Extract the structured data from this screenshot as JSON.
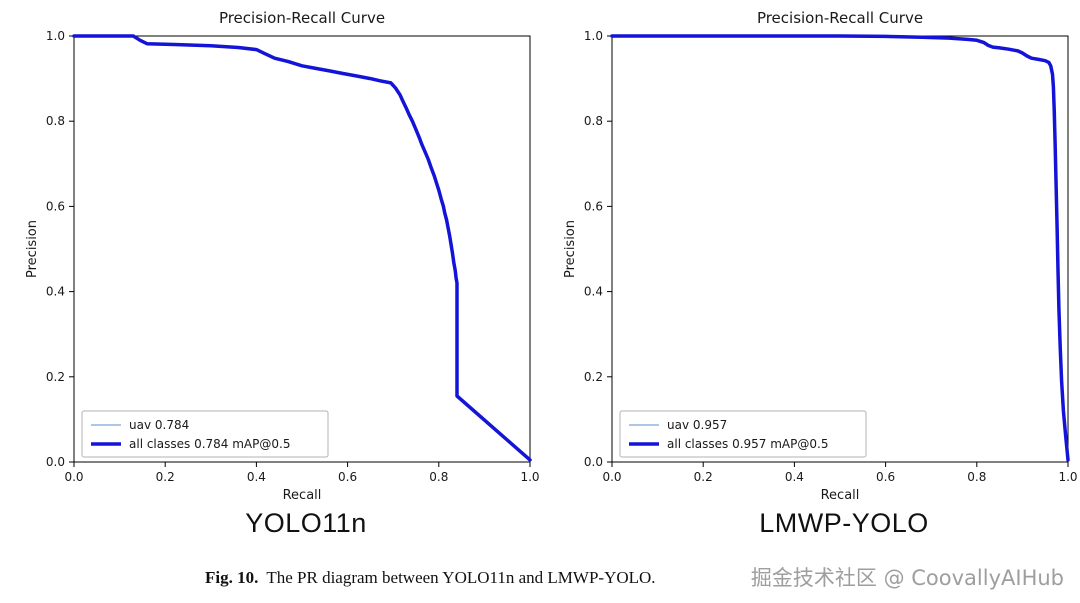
{
  "chart_data": [
    {
      "type": "line",
      "title": "Precision-Recall Curve",
      "xlabel": "Recall",
      "ylabel": "Precision",
      "model_label": "YOLO11n",
      "xlim": [
        0,
        1.0
      ],
      "ylim": [
        0,
        1.0
      ],
      "xticks": [
        "0.0",
        "0.2",
        "0.4",
        "0.6",
        "0.8",
        "1.0"
      ],
      "yticks": [
        "0.0",
        "0.2",
        "0.4",
        "0.6",
        "0.8",
        "1.0"
      ],
      "grid": false,
      "legend_position": "lower left",
      "series": [
        {
          "name": "uav 0.784",
          "color": "#7da3d8",
          "width": 1.3
        },
        {
          "name": "all classes 0.784 mAP@0.5",
          "color": "#1414d8",
          "width": 3.5
        }
      ],
      "points": [
        [
          0,
          1.0
        ],
        [
          0.13,
          1.0
        ],
        [
          0.145,
          0.99
        ],
        [
          0.16,
          0.982
        ],
        [
          0.22,
          0.98
        ],
        [
          0.3,
          0.977
        ],
        [
          0.36,
          0.973
        ],
        [
          0.4,
          0.968
        ],
        [
          0.42,
          0.958
        ],
        [
          0.44,
          0.948
        ],
        [
          0.47,
          0.94
        ],
        [
          0.5,
          0.93
        ],
        [
          0.53,
          0.924
        ],
        [
          0.56,
          0.918
        ],
        [
          0.59,
          0.912
        ],
        [
          0.62,
          0.906
        ],
        [
          0.65,
          0.9
        ],
        [
          0.67,
          0.895
        ],
        [
          0.695,
          0.89
        ],
        [
          0.705,
          0.878
        ],
        [
          0.715,
          0.862
        ],
        [
          0.72,
          0.85
        ],
        [
          0.728,
          0.832
        ],
        [
          0.735,
          0.815
        ],
        [
          0.742,
          0.8
        ],
        [
          0.75,
          0.78
        ],
        [
          0.757,
          0.762
        ],
        [
          0.763,
          0.745
        ],
        [
          0.77,
          0.728
        ],
        [
          0.777,
          0.71
        ],
        [
          0.783,
          0.692
        ],
        [
          0.79,
          0.672
        ],
        [
          0.795,
          0.655
        ],
        [
          0.8,
          0.638
        ],
        [
          0.805,
          0.618
        ],
        [
          0.81,
          0.6
        ],
        [
          0.813,
          0.585
        ],
        [
          0.817,
          0.568
        ],
        [
          0.82,
          0.552
        ],
        [
          0.824,
          0.53
        ],
        [
          0.827,
          0.51
        ],
        [
          0.83,
          0.49
        ],
        [
          0.833,
          0.468
        ],
        [
          0.836,
          0.45
        ],
        [
          0.838,
          0.432
        ],
        [
          0.84,
          0.42
        ],
        [
          0.84,
          0.155
        ],
        [
          1.0,
          0.005
        ]
      ]
    },
    {
      "type": "line",
      "title": "Precision-Recall Curve",
      "xlabel": "Recall",
      "ylabel": "Precision",
      "model_label": "LMWP-YOLO",
      "xlim": [
        0,
        1.0
      ],
      "ylim": [
        0,
        1.0
      ],
      "xticks": [
        "0.0",
        "0.2",
        "0.4",
        "0.6",
        "0.8",
        "1.0"
      ],
      "yticks": [
        "0.0",
        "0.2",
        "0.4",
        "0.6",
        "0.8",
        "1.0"
      ],
      "grid": false,
      "legend_position": "lower left",
      "series": [
        {
          "name": "uav 0.957",
          "color": "#7da3d8",
          "width": 1.3
        },
        {
          "name": "all classes 0.957 mAP@0.5",
          "color": "#1414d8",
          "width": 3.5
        }
      ],
      "points": [
        [
          0,
          1.0
        ],
        [
          0.5,
          1.0
        ],
        [
          0.6,
          0.999
        ],
        [
          0.68,
          0.997
        ],
        [
          0.74,
          0.995
        ],
        [
          0.78,
          0.992
        ],
        [
          0.8,
          0.99
        ],
        [
          0.815,
          0.985
        ],
        [
          0.825,
          0.978
        ],
        [
          0.835,
          0.974
        ],
        [
          0.85,
          0.972
        ],
        [
          0.87,
          0.969
        ],
        [
          0.89,
          0.965
        ],
        [
          0.9,
          0.96
        ],
        [
          0.91,
          0.953
        ],
        [
          0.92,
          0.948
        ],
        [
          0.935,
          0.945
        ],
        [
          0.95,
          0.942
        ],
        [
          0.958,
          0.938
        ],
        [
          0.962,
          0.93
        ],
        [
          0.966,
          0.91
        ],
        [
          0.968,
          0.88
        ],
        [
          0.97,
          0.82
        ],
        [
          0.972,
          0.74
        ],
        [
          0.974,
          0.65
        ],
        [
          0.976,
          0.55
        ],
        [
          0.978,
          0.45
        ],
        [
          0.98,
          0.36
        ],
        [
          0.983,
          0.27
        ],
        [
          0.986,
          0.19
        ],
        [
          0.99,
          0.12
        ],
        [
          0.995,
          0.06
        ],
        [
          1.0,
          0.005
        ]
      ]
    }
  ],
  "caption": {
    "fig_label": "Fig. 10.",
    "text": "The PR diagram between YOLO11n and LMWP-YOLO."
  },
  "watermark": "掘金技术社区 @ CoovallyAIHub"
}
